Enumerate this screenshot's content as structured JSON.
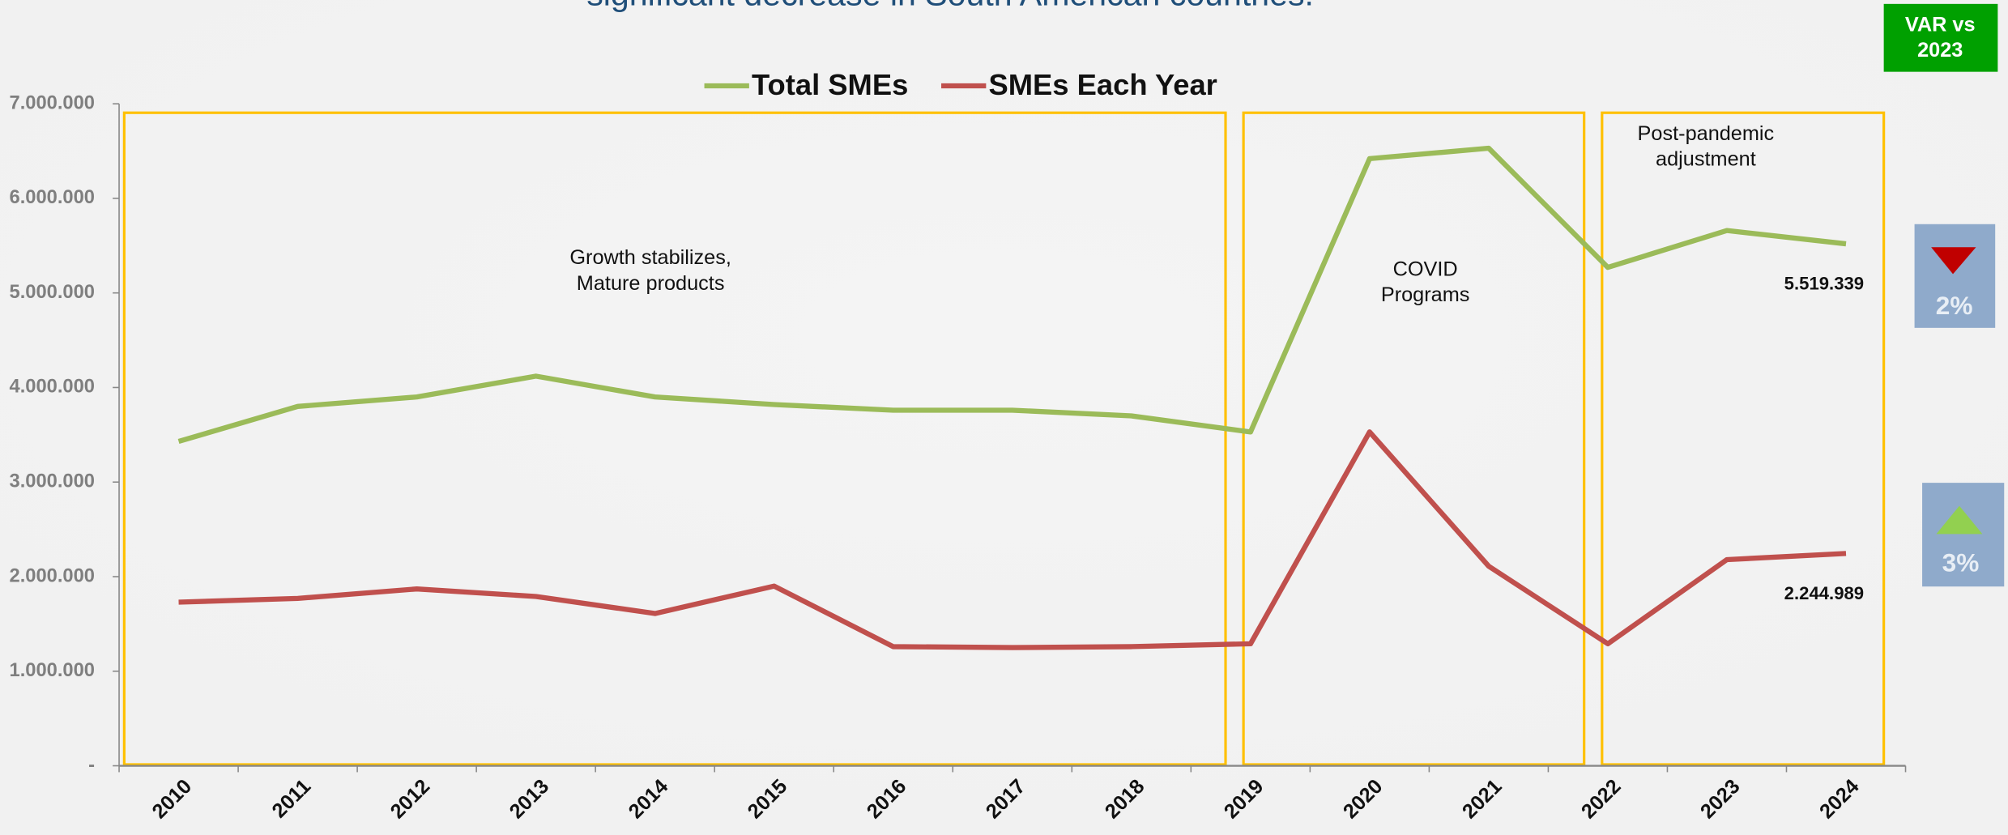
{
  "chart_data": {
    "type": "line",
    "title": "significant decrease in South American countries.",
    "categories": [
      "2010",
      "2011",
      "2012",
      "2013",
      "2014",
      "2015",
      "2016",
      "2017",
      "2018",
      "2019",
      "2020",
      "2021",
      "2022",
      "2023",
      "2024"
    ],
    "series": [
      {
        "name": "Total SMEs",
        "color": "#9bbb59",
        "values": [
          3430000,
          3800000,
          3900000,
          4120000,
          3900000,
          3820000,
          3760000,
          3760000,
          3700000,
          3530000,
          6420000,
          6530000,
          5270000,
          5660000,
          5519339
        ],
        "value_labels": [
          null,
          null,
          null,
          null,
          null,
          null,
          null,
          null,
          null,
          null,
          null,
          null,
          null,
          null,
          "5.519.339"
        ]
      },
      {
        "name": "SMEs Each Year",
        "color": "#c0504d",
        "values": [
          1730000,
          1770000,
          1870000,
          1790000,
          1610000,
          1900000,
          1260000,
          1250000,
          1260000,
          1290000,
          3530000,
          2110000,
          1290000,
          2180000,
          2244989
        ],
        "value_labels": [
          null,
          null,
          null,
          null,
          null,
          null,
          null,
          null,
          null,
          null,
          null,
          null,
          null,
          null,
          "2.244.989"
        ]
      }
    ],
    "ylim": [
      0,
      7000000
    ],
    "yticks": [
      {
        "value": 0,
        "label": "-"
      },
      {
        "value": 1000000,
        "label": "1.000.000"
      },
      {
        "value": 2000000,
        "label": "2.000.000"
      },
      {
        "value": 3000000,
        "label": "3.000.000"
      },
      {
        "value": 4000000,
        "label": "4.000.000"
      },
      {
        "value": 5000000,
        "label": "5.000.000"
      },
      {
        "value": 6000000,
        "label": "6.000.000"
      },
      {
        "value": 7000000,
        "label": "7.000.000"
      }
    ],
    "legend": "top",
    "grid": false,
    "annotations": [
      [
        "Growth stabilizes,",
        "Mature products"
      ],
      [
        "COVID",
        "Programs"
      ],
      [
        "Post-pandemic",
        "adjustment"
      ]
    ],
    "var_header": [
      "VAR vs",
      "2023"
    ],
    "variations": [
      "2%",
      "3%"
    ]
  }
}
